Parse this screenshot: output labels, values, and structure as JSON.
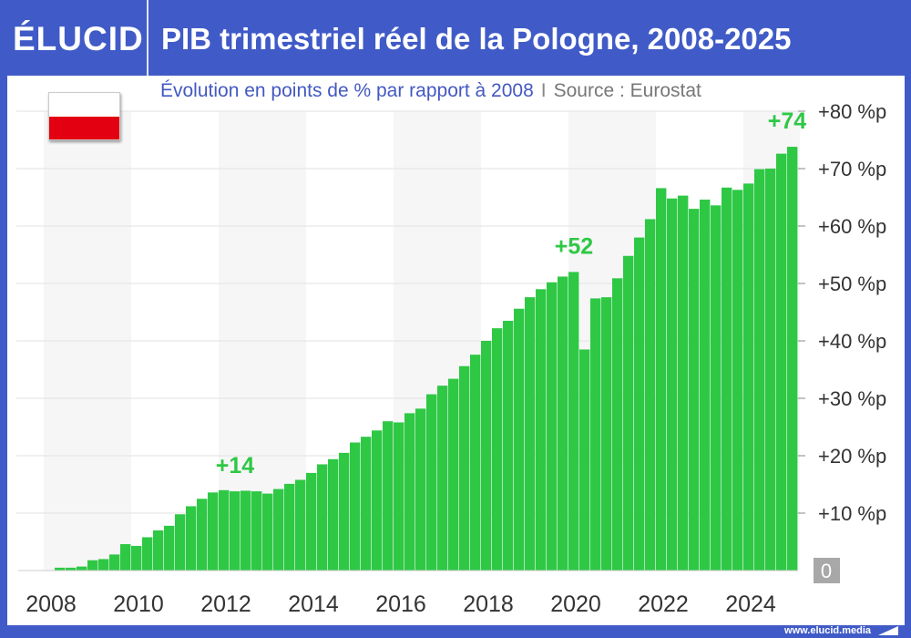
{
  "header": {
    "logo": "ÉLUCID",
    "title": "PIB trimestriel réel de la Pologne, 2008-2025"
  },
  "subtitle": {
    "text": "Évolution en points de % par rapport à 2008",
    "separator": "I",
    "source": "Source : Eurostat"
  },
  "footer": {
    "url": "www.elucid.media"
  },
  "colors": {
    "bar": "#2ec845",
    "brand": "#405bc7",
    "annotation": "#2ec845"
  },
  "chart_data": {
    "type": "bar",
    "title": "PIB trimestriel réel de la Pologne, 2008-2025",
    "subtitle": "Évolution en points de % par rapport à 2008",
    "ylabel": "points de %",
    "ylim": [
      0,
      80
    ],
    "x_start": "2008Q1",
    "x_tick_labels": [
      "2008",
      "2010",
      "2012",
      "2014",
      "2016",
      "2018",
      "2020",
      "2022",
      "2024"
    ],
    "y_tick_labels": [
      "0",
      "+10 %p",
      "+20 %p",
      "+30 %p",
      "+40 %p",
      "+50 %p",
      "+60 %p",
      "+70 %p",
      "+80 %p"
    ],
    "values": [
      0,
      0.5,
      0.5,
      0.7,
      1.8,
      2.0,
      2.8,
      4.6,
      4.3,
      5.8,
      7.0,
      7.8,
      9.8,
      11.2,
      12.5,
      13.6,
      14.0,
      13.8,
      13.9,
      13.8,
      13.4,
      14.2,
      15.1,
      15.8,
      17.0,
      18.5,
      19.4,
      20.5,
      22.3,
      23.3,
      24.4,
      26.0,
      25.8,
      27.4,
      28.2,
      30.7,
      32.2,
      33.4,
      35.6,
      37.6,
      40.0,
      42.2,
      43.5,
      45.6,
      47.6,
      49.0,
      50.2,
      51.2,
      52.0,
      38.5,
      47.4,
      47.6,
      50.9,
      54.8,
      58.0,
      61.2,
      66.6,
      64.8,
      65.3,
      63.0,
      64.6,
      63.6,
      66.7,
      66.3,
      67.4,
      69.9,
      70.0,
      72.6,
      73.8
    ],
    "annotations": [
      {
        "label": "+14",
        "index": 17
      },
      {
        "label": "+52",
        "index": 48
      },
      {
        "label": "+74",
        "index": 68
      }
    ],
    "grid": true
  }
}
